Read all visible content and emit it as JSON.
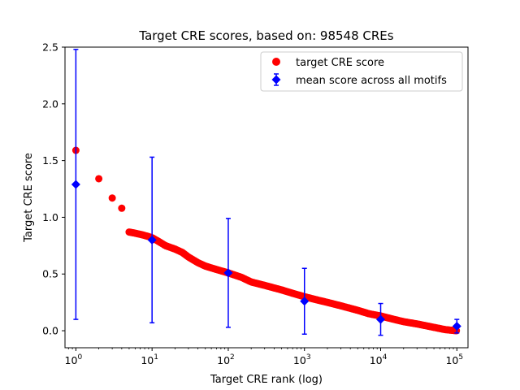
{
  "chart_data": {
    "type": "scatter",
    "title": "Target CRE scores, based on: 98548 CREs",
    "xlabel": "Target CRE rank (log)",
    "ylabel": "Target CRE score",
    "xscale": "log",
    "xlim": [
      0.72,
      140000
    ],
    "ylim": [
      -0.15,
      2.5
    ],
    "grid": false,
    "legend_position": "top-right",
    "x_ticks": [
      {
        "value": 1,
        "base": "10",
        "exp": "0"
      },
      {
        "value": 10,
        "base": "10",
        "exp": "1"
      },
      {
        "value": 100,
        "base": "10",
        "exp": "2"
      },
      {
        "value": 1000,
        "base": "10",
        "exp": "3"
      },
      {
        "value": 10000,
        "base": "10",
        "exp": "4"
      },
      {
        "value": 100000,
        "base": "10",
        "exp": "5"
      }
    ],
    "y_ticks": [
      {
        "value": 0.0,
        "label": "0.0"
      },
      {
        "value": 0.5,
        "label": "0.5"
      },
      {
        "value": 1.0,
        "label": "1.0"
      },
      {
        "value": 1.5,
        "label": "1.5"
      },
      {
        "value": 2.0,
        "label": "2.0"
      },
      {
        "value": 2.5,
        "label": "2.5"
      }
    ],
    "series": [
      {
        "name": "target CRE score",
        "marker": "circle",
        "color": "#ff0000",
        "x": [
          1,
          2,
          3,
          4,
          5,
          6,
          7,
          8,
          9,
          10,
          12,
          15,
          20,
          25,
          30,
          40,
          50,
          70,
          100,
          150,
          200,
          300,
          500,
          700,
          1000,
          1500,
          2000,
          3000,
          5000,
          7000,
          10000,
          15000,
          20000,
          30000,
          50000,
          70000,
          98548
        ],
        "y": [
          1.59,
          1.34,
          1.17,
          1.08,
          0.87,
          0.86,
          0.85,
          0.84,
          0.83,
          0.82,
          0.79,
          0.75,
          0.72,
          0.69,
          0.65,
          0.6,
          0.57,
          0.54,
          0.51,
          0.47,
          0.43,
          0.4,
          0.36,
          0.33,
          0.3,
          0.27,
          0.25,
          0.22,
          0.18,
          0.15,
          0.13,
          0.1,
          0.08,
          0.06,
          0.03,
          0.01,
          0.0
        ]
      },
      {
        "name": "mean score across all motifs",
        "marker": "diamond",
        "color": "#0000ff",
        "x": [
          1,
          10,
          100,
          1000,
          10000,
          100000
        ],
        "y": [
          1.29,
          0.8,
          0.51,
          0.26,
          0.1,
          0.04
        ],
        "yerr": [
          1.19,
          0.73,
          0.48,
          0.29,
          0.14,
          0.06
        ]
      }
    ]
  },
  "colors": {
    "score": "#ff0000",
    "mean": "#0000ff",
    "axes": "#000000",
    "legend_border": "#cccccc"
  }
}
